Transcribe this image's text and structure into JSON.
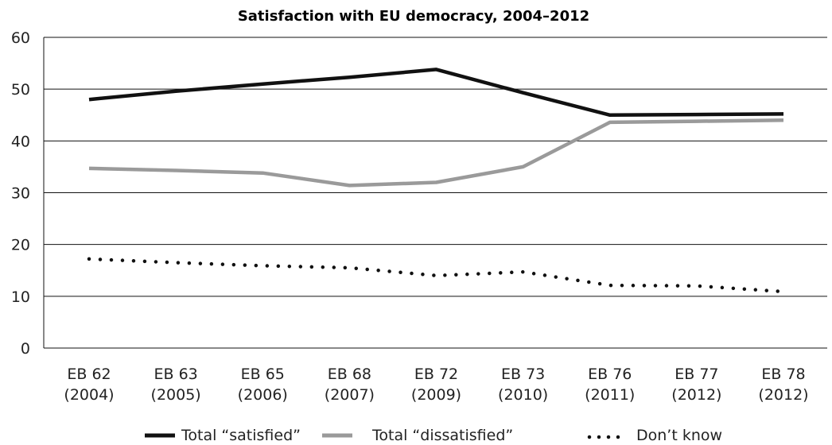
{
  "chart_data": {
    "type": "line",
    "title": "Satisfaction with EU democracy, 2004–2012",
    "xlabel": "",
    "ylabel": "",
    "ylim": [
      0,
      60
    ],
    "yticks": [
      0,
      10,
      20,
      30,
      40,
      50,
      60
    ],
    "grid": true,
    "legend_position": "bottom",
    "categories": [
      [
        "EB 62",
        "(2004)"
      ],
      [
        "EB 63",
        "(2005)"
      ],
      [
        "EB 65",
        "(2006)"
      ],
      [
        "EB 68",
        "(2007)"
      ],
      [
        "EB 72",
        "(2009)"
      ],
      [
        "EB 73",
        "(2010)"
      ],
      [
        "EB 76",
        "(2011)"
      ],
      [
        "EB 77",
        "(2012)"
      ],
      [
        "EB 78",
        "(2012)"
      ]
    ],
    "series": [
      {
        "name": "Total “satisfied”",
        "color": "#111111",
        "style": "solid",
        "values": [
          48,
          49.6,
          51,
          52.3,
          53.8,
          49.3,
          45,
          45.1,
          45.2
        ]
      },
      {
        "name": "Total “dissatisfied”",
        "color": "#9a9a9a",
        "style": "solid",
        "values": [
          34.7,
          34.3,
          33.8,
          31.4,
          32,
          35,
          43.6,
          43.8,
          44
        ]
      },
      {
        "name": "Don’t know",
        "color": "#111111",
        "style": "dotted",
        "values": [
          17.2,
          16.5,
          15.9,
          15.5,
          14,
          14.7,
          12.1,
          12,
          10.9
        ]
      }
    ]
  }
}
